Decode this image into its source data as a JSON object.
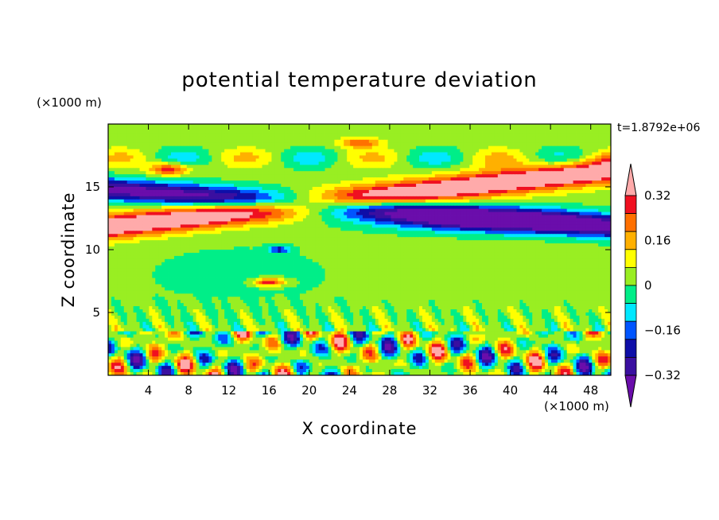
{
  "chart_data": {
    "type": "heatmap",
    "title": "potential temperature deviation",
    "xlabel": "X coordinate",
    "ylabel": "Z coordinate",
    "x_units": "(×1000 m)",
    "y_units": "(×1000 m)",
    "time_label": "t=1.8792e+06",
    "xlim": [
      0,
      50
    ],
    "ylim": [
      0,
      20
    ],
    "x_ticks": [
      4,
      8,
      12,
      16,
      20,
      24,
      28,
      32,
      36,
      40,
      44,
      48
    ],
    "x_tick_labels": [
      "4",
      "8",
      "12",
      "16",
      "20",
      "24",
      "28",
      "32",
      "36",
      "40",
      "44",
      "48"
    ],
    "y_ticks": [
      5,
      10,
      15
    ],
    "y_tick_labels": [
      "5",
      "10",
      "15"
    ],
    "colorbar": {
      "levels": [
        -0.4,
        -0.32,
        -0.24,
        -0.16,
        -0.08,
        0,
        0.08,
        0.16,
        0.24,
        0.32,
        0.4
      ],
      "labeled_levels": [
        0.32,
        0.16,
        0,
        -0.16,
        -0.32
      ],
      "labels": [
        "0.32",
        "0.16",
        "0",
        "−0.16",
        "−0.32"
      ],
      "colors": [
        "#6a0dab",
        "#3a0fa0",
        "#0e0ea8",
        "#0055ff",
        "#00e8ff",
        "#00ee88",
        "#99ee22",
        "#ffff00",
        "#ffb000",
        "#ff7000",
        "#f01020",
        "#ffaaaa"
      ]
    },
    "features": [
      {
        "name": "upper positive band",
        "x": [
          0,
          50
        ],
        "z": [
          11,
          17
        ],
        "max": 0.45
      },
      {
        "name": "upper negative band",
        "x": [
          0,
          50
        ],
        "z": [
          12,
          16
        ],
        "min": -0.45
      },
      {
        "name": "near-neutral mid layer",
        "x": [
          0,
          50
        ],
        "z": [
          4,
          11
        ],
        "value": 0
      },
      {
        "name": "turbulent boundary layer",
        "x": [
          0,
          50
        ],
        "z": [
          0,
          3.5
        ],
        "range": [
          -0.45,
          0.45
        ]
      }
    ]
  }
}
